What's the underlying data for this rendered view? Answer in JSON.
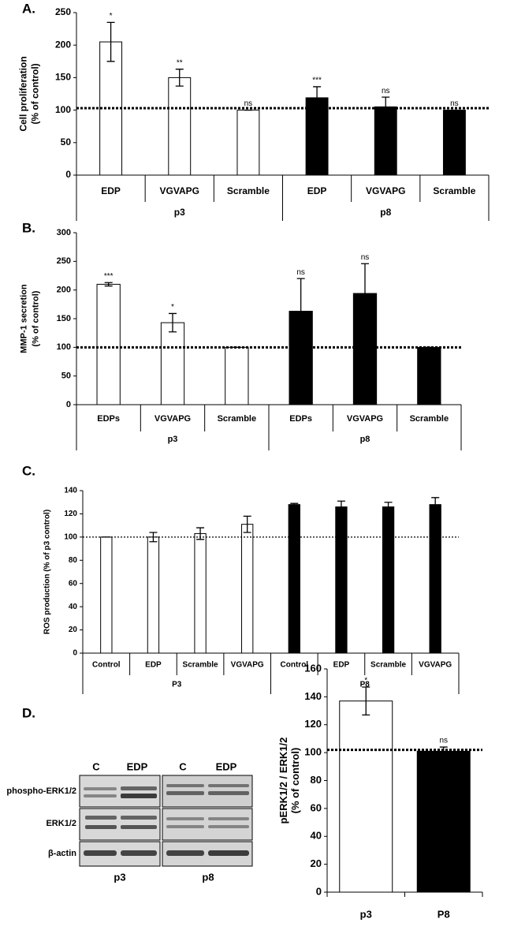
{
  "chart_data": [
    {
      "type": "bar",
      "panel_label": "A.",
      "y_label": [
        "Cell proliferation",
        "(% of control)"
      ],
      "ylim": [
        0,
        250
      ],
      "yticks": [
        0,
        50,
        100,
        150,
        200,
        250
      ],
      "reference_line": 103,
      "series": [
        {
          "name": "p3",
          "color": "#ffffff",
          "categories": [
            "EDP",
            "VGVAPG",
            "Scramble"
          ],
          "values": [
            205,
            150,
            100
          ],
          "errors": [
            30,
            13,
            0
          ],
          "annotations": [
            "*",
            "**",
            "ns"
          ]
        },
        {
          "name": "p8",
          "color": "#000000",
          "categories": [
            "EDP",
            "VGVAPG",
            "Scramble"
          ],
          "values": [
            119,
            105,
            100
          ],
          "errors": [
            17,
            15,
            0
          ],
          "annotations": [
            "***",
            "ns",
            "ns"
          ]
        }
      ]
    },
    {
      "type": "bar",
      "panel_label": "B.",
      "y_label": [
        "MMP-1 secretion",
        "(% of control)"
      ],
      "ylim": [
        0,
        300
      ],
      "yticks": [
        0,
        50,
        100,
        150,
        200,
        250,
        300
      ],
      "reference_line": 100,
      "series": [
        {
          "name": "p3",
          "color": "#ffffff",
          "categories": [
            "EDPs",
            "VGVAPG",
            "Scramble"
          ],
          "values": [
            210,
            143,
            100
          ],
          "errors": [
            3,
            16,
            0
          ],
          "annotations": [
            "***",
            "*",
            null
          ]
        },
        {
          "name": "p8",
          "color": "#000000",
          "categories": [
            "EDPs",
            "VGVAPG",
            "Scramble"
          ],
          "values": [
            163,
            194,
            100
          ],
          "errors": [
            57,
            52,
            0
          ],
          "annotations": [
            "ns",
            "ns",
            null
          ]
        }
      ]
    },
    {
      "type": "bar",
      "panel_label": "C.",
      "y_label": [
        "ROS production (% of p3 control)"
      ],
      "ylim": [
        0,
        140
      ],
      "yticks": [
        0,
        20,
        40,
        60,
        80,
        100,
        120,
        140
      ],
      "reference_line": 100,
      "series": [
        {
          "name": "P3",
          "color": "#ffffff",
          "categories": [
            "Control",
            "EDP",
            "Scramble",
            "VGVAPG"
          ],
          "values": [
            100,
            100,
            103,
            111
          ],
          "errors": [
            0,
            4,
            5,
            7
          ],
          "annotations": [
            null,
            null,
            null,
            null
          ]
        },
        {
          "name": "P8",
          "color": "#000000",
          "categories": [
            "Control",
            "EDP",
            "Scramble",
            "VGVAPG"
          ],
          "values": [
            128,
            126,
            126,
            128
          ],
          "errors": [
            1,
            5,
            4,
            6
          ],
          "annotations": [
            null,
            null,
            null,
            null
          ]
        }
      ]
    },
    {
      "type": "bar",
      "panel_label": "D.",
      "y_label": [
        "pERK1/2 / ERK1/2",
        "(% of control)"
      ],
      "ylim": [
        0,
        160
      ],
      "yticks": [
        0,
        20,
        40,
        60,
        80,
        100,
        120,
        140,
        160
      ],
      "reference_line": 102,
      "series": [
        {
          "color": "#ffffff",
          "categories": [
            "p3"
          ],
          "values": [
            137
          ],
          "errors": [
            10
          ],
          "annotations": [
            "*"
          ]
        },
        {
          "color": "#000000",
          "categories": [
            "P8"
          ],
          "values": [
            101
          ],
          "errors": [
            3
          ],
          "annotations": [
            "ns"
          ]
        }
      ]
    }
  ],
  "blot": {
    "lanes": [
      "C",
      "EDP",
      "C",
      "EDP"
    ],
    "rows": [
      "phospho-ERK1/2",
      "ERK1/2",
      "β-actin"
    ],
    "groups": [
      "p3",
      "p8"
    ]
  }
}
